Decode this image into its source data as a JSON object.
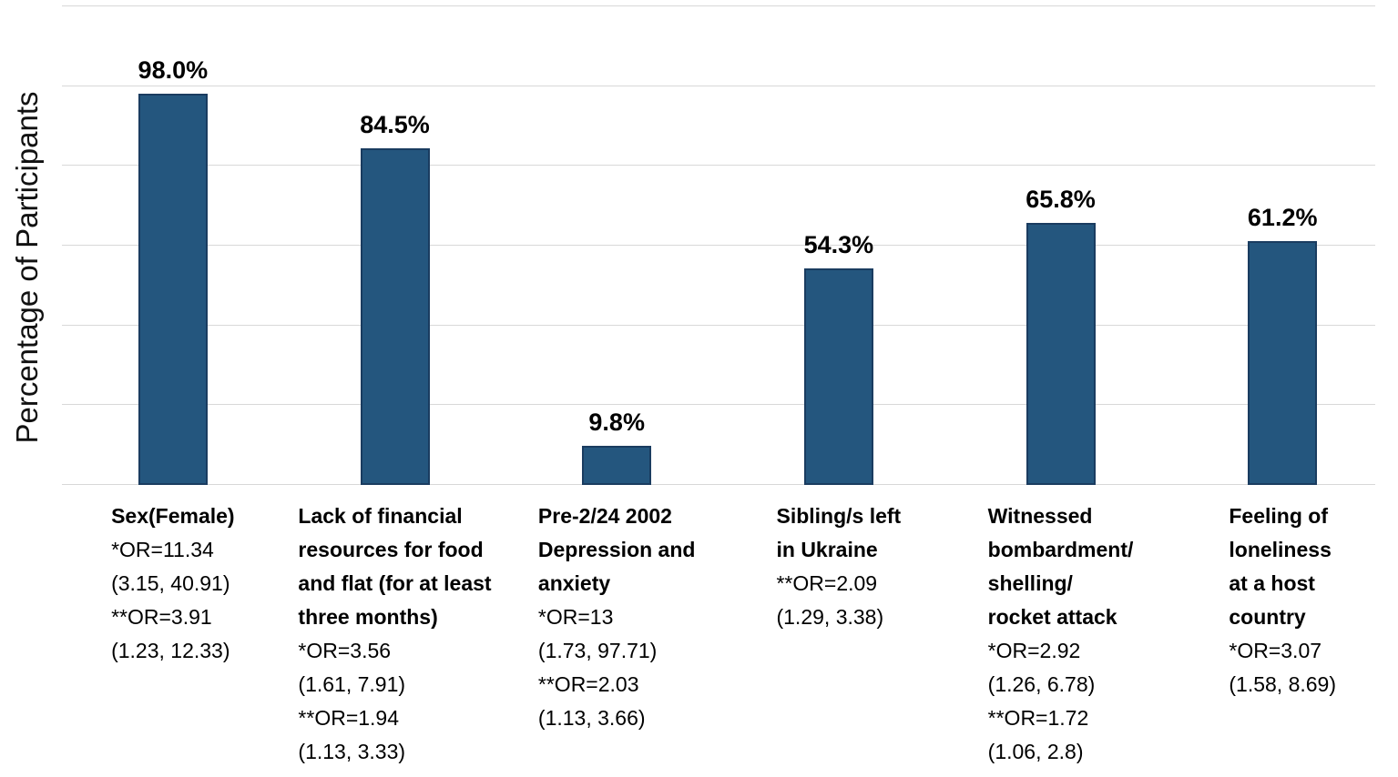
{
  "chart_data": {
    "type": "bar",
    "title": "",
    "xlabel": "",
    "ylabel": "Percentage of Participants",
    "ylim": [
      0,
      120
    ],
    "gridlines": [
      0,
      20,
      40,
      60,
      80,
      100,
      120
    ],
    "grid": true,
    "legend": "none",
    "axis_tick_labels_visible": false,
    "bar_color": "#24567E",
    "bar_border_color": "#1A3C60",
    "gridline_color": "#D8D8D8",
    "text_color": "#000000",
    "categories": [
      {
        "name": "Sex(Female)",
        "title_lines": [
          "Sex(Female)"
        ],
        "stat_lines": [
          "*OR=11.34",
          "(3.15, 40.91)",
          "**OR=3.91",
          "(1.23, 12.33)"
        ],
        "value": 98.0,
        "value_label": "98.0%"
      },
      {
        "name": "Lack of financial resources for food and flat (for at least three months)",
        "title_lines": [
          "Lack of financial",
          "resources for food",
          "and flat (for at least",
          "three months)"
        ],
        "stat_lines": [
          "*OR=3.56",
          "(1.61, 7.91)",
          "**OR=1.94",
          "(1.13, 3.33)"
        ],
        "value": 84.5,
        "value_label": "84.5%"
      },
      {
        "name": "Pre-2/24 2002 Depression and anxiety",
        "title_lines": [
          "Pre-2/24 2002",
          "Depression and",
          "anxiety"
        ],
        "stat_lines": [
          "*OR=13",
          "(1.73, 97.71)",
          "**OR=2.03",
          "(1.13, 3.66)"
        ],
        "value": 9.8,
        "value_label": "9.8%"
      },
      {
        "name": "Sibling/s left in Ukraine",
        "title_lines": [
          "Sibling/s left",
          "in Ukraine"
        ],
        "stat_lines": [
          "**OR=2.09",
          "(1.29, 3.38)"
        ],
        "value": 54.3,
        "value_label": "54.3%"
      },
      {
        "name": "Witnessed bombardment/ shelling/ rocket attack",
        "title_lines": [
          "Witnessed",
          "bombardment/",
          "shelling/",
          "rocket attack"
        ],
        "stat_lines": [
          "*OR=2.92",
          "(1.26, 6.78)",
          "**OR=1.72",
          "(1.06, 2.8)"
        ],
        "value": 65.8,
        "value_label": "65.8%"
      },
      {
        "name": "Feeling of loneliness at a host country",
        "title_lines": [
          "Feeling of",
          "loneliness",
          "at a host",
          "country"
        ],
        "stat_lines": [
          "*OR=3.07",
          "(1.58, 8.69)"
        ],
        "value": 61.2,
        "value_label": "61.2%"
      }
    ]
  }
}
